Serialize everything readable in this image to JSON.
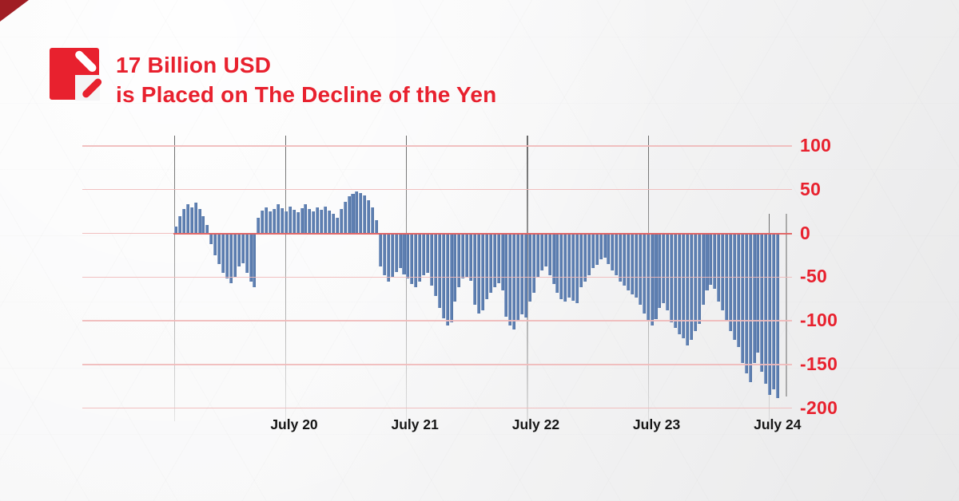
{
  "page": {
    "background_color": "#f1f1f2"
  },
  "brand": {
    "corner_accent_color": "#a01d23",
    "accent_red": "#e8212e",
    "logo_icon": "red-square-double-slash-logo"
  },
  "title": {
    "line1": "17 Billion USD",
    "line2": "is Placed on The Decline of the Yen",
    "color": "#e8212e"
  },
  "chart_data": {
    "type": "bar",
    "title": "17 Billion USD is Placed on The Decline of the Yen",
    "xlabel": "",
    "ylabel": "",
    "x_tick_labels": [
      "July 20",
      "July 21",
      "July 22",
      "July 23",
      "July 24"
    ],
    "y_ticks": [
      100,
      50,
      0,
      -50,
      -100,
      -150,
      -200
    ],
    "ylim": [
      -200,
      100
    ],
    "grid": true,
    "legend": "none",
    "bar_color": "#5d7fb2",
    "grid_color": "#f0b9b9",
    "zero_line_color": "#e06262",
    "day_line_color": "#8f8f8f",
    "y_tick_label_color": "#e8212e",
    "x_tick_label_color": "#161616",
    "values": [
      8,
      20,
      28,
      33,
      30,
      35,
      28,
      20,
      10,
      -12,
      -25,
      -35,
      -45,
      -52,
      -57,
      -50,
      -38,
      -34,
      -45,
      -55,
      -62,
      18,
      26,
      30,
      25,
      28,
      33,
      29,
      25,
      31,
      27,
      24,
      29,
      33,
      28,
      25,
      30,
      27,
      31,
      26,
      22,
      18,
      28,
      36,
      42,
      45,
      48,
      46,
      43,
      38,
      30,
      15,
      -38,
      -48,
      -55,
      -50,
      -44,
      -40,
      -47,
      -52,
      -58,
      -62,
      -55,
      -48,
      -45,
      -60,
      -72,
      -85,
      -97,
      -105,
      -102,
      -78,
      -62,
      -52,
      -50,
      -54,
      -82,
      -92,
      -88,
      -75,
      -68,
      -62,
      -57,
      -65,
      -95,
      -105,
      -110,
      -100,
      -93,
      -96,
      -78,
      -68,
      -50,
      -42,
      -38,
      -48,
      -58,
      -68,
      -75,
      -78,
      -73,
      -77,
      -80,
      -62,
      -55,
      -48,
      -40,
      -36,
      -30,
      -28,
      -35,
      -42,
      -48,
      -55,
      -60,
      -65,
      -70,
      -73,
      -82,
      -92,
      -100,
      -105,
      -98,
      -85,
      -80,
      -88,
      -102,
      -108,
      -115,
      -120,
      -128,
      -122,
      -112,
      -104,
      -82,
      -65,
      -59,
      -63,
      -78,
      -88,
      -100,
      -112,
      -122,
      -130,
      -148,
      -160,
      -170,
      -148,
      -136,
      -158,
      -172,
      -185,
      -178,
      -188
    ]
  }
}
